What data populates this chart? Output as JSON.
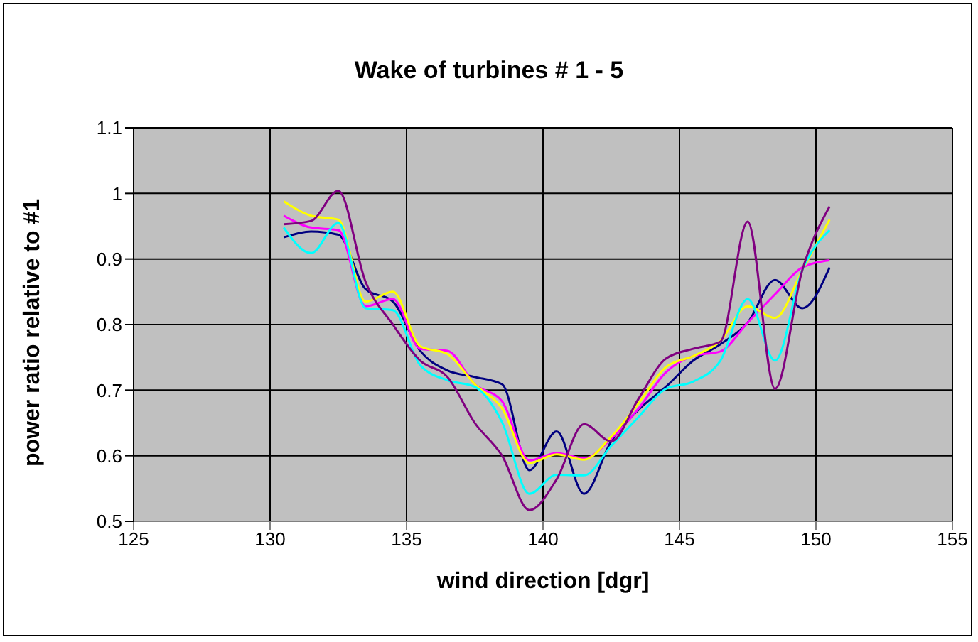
{
  "chart_data": {
    "type": "line",
    "title": "Wake of turbines # 1 - 5",
    "xlabel": "wind direction [dgr]",
    "ylabel": "power ratio relative to #1",
    "x": [
      130.5,
      131.5,
      132.5,
      133.5,
      134.5,
      135.5,
      136.5,
      137.5,
      138.5,
      139.5,
      140.5,
      141.5,
      142.5,
      143.5,
      144.5,
      145.5,
      146.5,
      147.5,
      148.5,
      149.5,
      150.5
    ],
    "series": [
      {
        "color": "#000080",
        "values": [
          0.933,
          0.942,
          0.937,
          0.854,
          0.835,
          0.76,
          0.73,
          0.72,
          0.709,
          0.578,
          0.637,
          0.542,
          0.622,
          0.67,
          0.705,
          0.745,
          0.77,
          0.803,
          0.868,
          0.825,
          0.887
        ]
      },
      {
        "color": "#ff00ff",
        "values": [
          0.966,
          0.948,
          0.944,
          0.828,
          0.839,
          0.763,
          0.76,
          0.709,
          0.683,
          0.593,
          0.604,
          0.596,
          0.626,
          0.672,
          0.727,
          0.752,
          0.759,
          0.803,
          0.846,
          0.887,
          0.898
        ]
      },
      {
        "color": "#ffff00",
        "values": [
          0.988,
          0.966,
          0.96,
          0.835,
          0.85,
          0.767,
          0.755,
          0.709,
          0.672,
          0.589,
          0.602,
          0.594,
          0.629,
          0.68,
          0.735,
          0.752,
          0.775,
          0.828,
          0.81,
          0.883,
          0.96
        ]
      },
      {
        "color": "#00ffff",
        "values": [
          0.948,
          0.909,
          0.955,
          0.825,
          0.822,
          0.738,
          0.715,
          0.705,
          0.651,
          0.542,
          0.571,
          0.57,
          0.615,
          0.659,
          0.702,
          0.713,
          0.745,
          0.839,
          0.745,
          0.883,
          0.944
        ]
      },
      {
        "color": "#800080",
        "values": [
          0.953,
          0.958,
          1.004,
          0.865,
          0.8,
          0.745,
          0.72,
          0.65,
          0.6,
          0.517,
          0.564,
          0.648,
          0.622,
          0.687,
          0.748,
          0.763,
          0.774,
          0.957,
          0.702,
          0.883,
          0.98
        ]
      }
    ],
    "xlim": [
      125,
      155
    ],
    "xticks": [
      125,
      130,
      135,
      140,
      145,
      150,
      155
    ],
    "ylim": [
      0.5,
      1.1
    ],
    "yticks": [
      0.5,
      0.6,
      0.7,
      0.8,
      0.9,
      1,
      1.1
    ],
    "grid": true,
    "marker": "none",
    "line_style": "solid"
  }
}
